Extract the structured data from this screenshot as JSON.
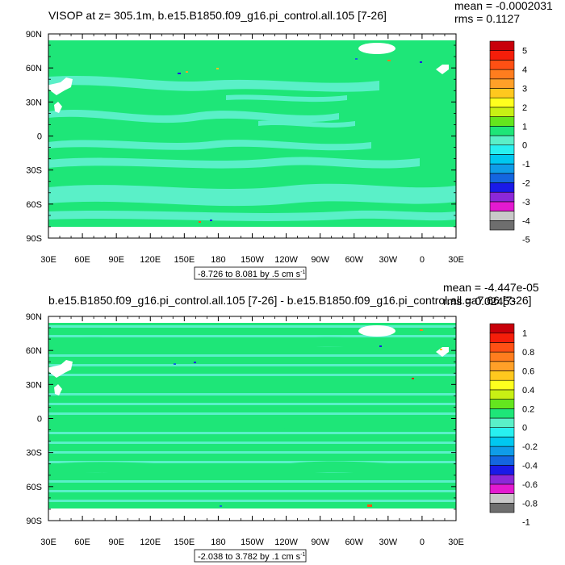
{
  "panels": [
    {
      "title": "VISOP at z= 305.1m, b.e15.B1850.f09_g16.pi_control.all.105 [7-26]",
      "mean_label": "mean = -0.0002031",
      "rms_label": "rms = 0.1127",
      "range_label": "-8.726 to 8.081 by .5 cm s",
      "range_sup": "-1"
    },
    {
      "title": "b.e15.B1850.f09_g16.pi_control.all.105 [7-26] - b.e15.B1850.f09_g16.pi_control.all.ga7.66 [7-26]",
      "mean_label": "mean = -4.447e-05",
      "rms_label": "rms = 0.02453",
      "range_label": "-2.038 to 3.782 by .1 cm s",
      "range_sup": "-1"
    }
  ],
  "chart_data": [
    {
      "type": "heatmap",
      "title": "VISOP at z= 305.1m, b.e15.B1850.f09_g16.pi_control.all.105 [7-26]",
      "x_ticks": [
        "30E",
        "60E",
        "90E",
        "120E",
        "150E",
        "180",
        "150W",
        "120W",
        "90W",
        "60W",
        "30W",
        "0",
        "30E"
      ],
      "y_ticks": [
        "90N",
        "60N",
        "30N",
        "0",
        "30S",
        "60S",
        "90S"
      ],
      "xlim": [
        30,
        390
      ],
      "ylim": [
        -90,
        90
      ],
      "colorbar_labels": [
        "5",
        "4",
        "3",
        "2",
        "1",
        "0",
        "-1",
        "-2",
        "-3",
        "-4",
        "-5"
      ],
      "colorbar_colors": [
        "#6e6e6e",
        "#c8c8c8",
        "#e31ad0",
        "#8c28d8",
        "#1a1ae8",
        "#1466e0",
        "#0f9ce8",
        "#00c8f0",
        "#28f0f0",
        "#5af0c8",
        "#1ee678",
        "#64e61e",
        "#c8f014",
        "#ffff1e",
        "#ffc81e",
        "#ffa028",
        "#ff7d1e",
        "#ff5014",
        "#f51e0a",
        "#c8000a"
      ],
      "mean": -0.0002031,
      "rms": 0.1127,
      "contour_min": -8.726,
      "contour_max": 8.081,
      "contour_interval": 0.5,
      "units": "cm s-1"
    },
    {
      "type": "heatmap",
      "title": "b.e15.B1850.f09_g16.pi_control.all.105 [7-26] - b.e15.B1850.f09_g16.pi_control.all.ga7.66 [7-26]",
      "x_ticks": [
        "30E",
        "60E",
        "90E",
        "120E",
        "150E",
        "180",
        "150W",
        "120W",
        "90W",
        "60W",
        "30W",
        "0",
        "30E"
      ],
      "y_ticks": [
        "90N",
        "60N",
        "30N",
        "0",
        "30S",
        "60S",
        "90S"
      ],
      "xlim": [
        30,
        390
      ],
      "ylim": [
        -90,
        90
      ],
      "colorbar_labels": [
        "1",
        "0.8",
        "0.6",
        "0.4",
        "0.2",
        "0",
        "-0.2",
        "-0.4",
        "-0.6",
        "-0.8",
        "-1"
      ],
      "colorbar_colors": [
        "#6e6e6e",
        "#c8c8c8",
        "#e31ad0",
        "#8c28d8",
        "#1a1ae8",
        "#1466e0",
        "#0f9ce8",
        "#00c8f0",
        "#28f0f0",
        "#5af0c8",
        "#1ee678",
        "#64e61e",
        "#c8f014",
        "#ffff1e",
        "#ffc81e",
        "#ffa028",
        "#ff7d1e",
        "#ff5014",
        "#f51e0a",
        "#c8000a"
      ],
      "mean": -4.447e-05,
      "rms": 0.02453,
      "contour_min": -2.038,
      "contour_max": 3.782,
      "contour_interval": 0.1,
      "units": "cm s-1"
    }
  ]
}
